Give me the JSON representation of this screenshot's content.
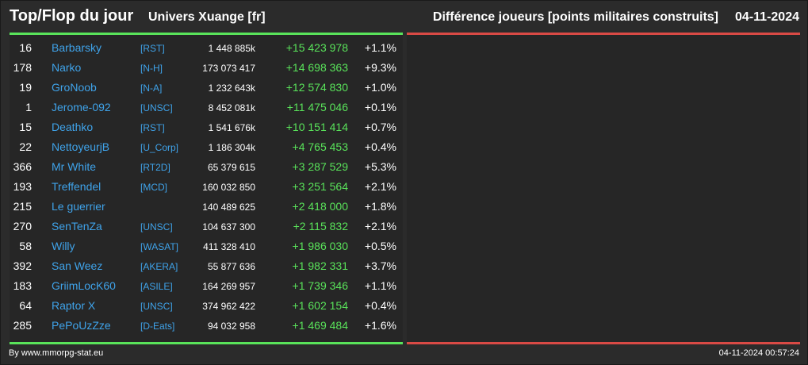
{
  "header": {
    "title": "Top/Flop du jour",
    "universe": "Univers Xuange [fr]",
    "metric": "Différence joueurs [points militaires construits]",
    "date": "04-11-2024"
  },
  "colors": {
    "background": "#2b2b2b",
    "panel": "#262626",
    "positive_bar": "#59e35a",
    "negative_bar": "#d94a45",
    "link": "#3fa3ea",
    "gain": "#59e35a"
  },
  "top_rows": [
    {
      "rank": "16",
      "name": "Barbarsky",
      "alliance": "[RST]",
      "points": "1 448 885k",
      "diff": "+15 423 978",
      "pct": "+1.1%"
    },
    {
      "rank": "178",
      "name": "Narko",
      "alliance": "[N-H]",
      "points": "173 073 417",
      "diff": "+14 698 363",
      "pct": "+9.3%"
    },
    {
      "rank": "19",
      "name": "GroNoob",
      "alliance": "[N-A]",
      "points": "1 232 643k",
      "diff": "+12 574 830",
      "pct": "+1.0%"
    },
    {
      "rank": "1",
      "name": "Jerome-092",
      "alliance": "[UNSC]",
      "points": "8 452 081k",
      "diff": "+11 475 046",
      "pct": "+0.1%"
    },
    {
      "rank": "15",
      "name": "Deathko",
      "alliance": "[RST]",
      "points": "1 541 676k",
      "diff": "+10 151 414",
      "pct": "+0.7%"
    },
    {
      "rank": "22",
      "name": "NettoyeurjB",
      "alliance": "[U_Corp]",
      "points": "1 186 304k",
      "diff": "+4 765 453",
      "pct": "+0.4%"
    },
    {
      "rank": "366",
      "name": "Mr White",
      "alliance": "[RT2D]",
      "points": "65 379 615",
      "diff": "+3 287 529",
      "pct": "+5.3%"
    },
    {
      "rank": "193",
      "name": "Treffendel",
      "alliance": "[MCD]",
      "points": "160 032 850",
      "diff": "+3 251 564",
      "pct": "+2.1%"
    },
    {
      "rank": "215",
      "name": "Le guerrier",
      "alliance": "",
      "points": "140 489 625",
      "diff": "+2 418 000",
      "pct": "+1.8%"
    },
    {
      "rank": "270",
      "name": "SenTenZa",
      "alliance": "[UNSC]",
      "points": "104 637 300",
      "diff": "+2 115 832",
      "pct": "+2.1%"
    },
    {
      "rank": "58",
      "name": "Willy",
      "alliance": "[WASAT]",
      "points": "411 328 410",
      "diff": "+1 986 030",
      "pct": "+0.5%"
    },
    {
      "rank": "392",
      "name": "San Weez",
      "alliance": "[AKERA]",
      "points": "55 877 636",
      "diff": "+1 982 331",
      "pct": "+3.7%"
    },
    {
      "rank": "183",
      "name": "GriimLocK60",
      "alliance": "[ASILE]",
      "points": "164 269 957",
      "diff": "+1 739 346",
      "pct": "+1.1%"
    },
    {
      "rank": "64",
      "name": "Raptor X",
      "alliance": "[UNSC]",
      "points": "374 962 422",
      "diff": "+1 602 154",
      "pct": "+0.4%"
    },
    {
      "rank": "285",
      "name": "PePoUzZze",
      "alliance": "[D-Eats]",
      "points": "94 032 958",
      "diff": "+1 469 484",
      "pct": "+1.6%"
    }
  ],
  "footer": {
    "source": "By www.mmorpg-stat.eu",
    "timestamp": "04-11-2024 00:57:24"
  }
}
